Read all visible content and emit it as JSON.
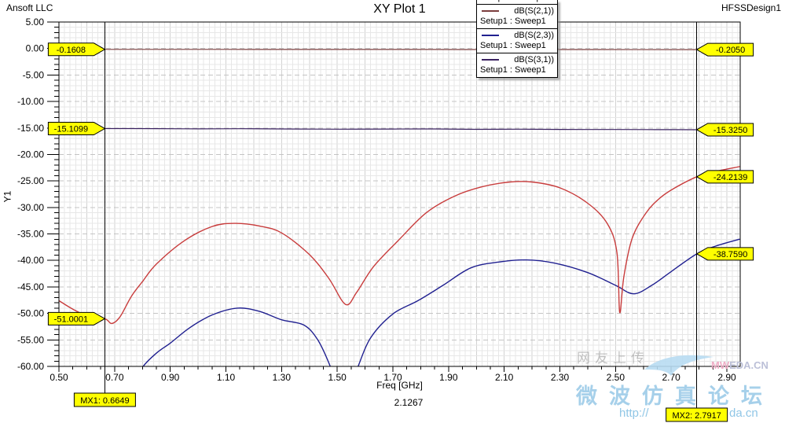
{
  "header": {
    "app_vendor": "Ansoft LLC",
    "title": "XY Plot 1",
    "design": "HFSSDesign1"
  },
  "axes": {
    "y_axis_label": "Y1",
    "x_axis_label": "Freq [GHz]",
    "x_axis_secondary_value": "2.1267",
    "x_ticks": [
      "0.50",
      "0.70",
      "0.90",
      "1.10",
      "1.30",
      "1.50",
      "1.70",
      "1.90",
      "2.10",
      "2.30",
      "2.50",
      "2.70",
      "2.90"
    ],
    "y_ticks": [
      "5.00",
      "0.00",
      "-5.00",
      "-10.00",
      "-15.00",
      "-20.00",
      "-25.00",
      "-30.00",
      "-35.00",
      "-40.00",
      "-45.00",
      "-50.00",
      "-55.00",
      "-60.00"
    ]
  },
  "legend": {
    "entries": [
      {
        "partial": true,
        "label": "",
        "sublabel": "Setup1 : Sweep1",
        "color": ""
      },
      {
        "partial": false,
        "label": "dB(S(2,1))",
        "sublabel": "Setup1 : Sweep1",
        "color": "#7b3e3e"
      },
      {
        "partial": false,
        "label": "dB(S(2,3))",
        "sublabel": "Setup1 : Sweep1",
        "color": "#202090"
      },
      {
        "partial": false,
        "label": "dB(S(3,1))",
        "sublabel": "Setup1 : Sweep1",
        "color": "#3a2160"
      }
    ]
  },
  "chart_data": {
    "type": "line",
    "title": "XY Plot 1",
    "xlabel": "Freq [GHz]",
    "ylabel": "Y1",
    "x_range": [
      0.5,
      2.9
    ],
    "y_range": [
      -60,
      5
    ],
    "x_tick_step": 0.2,
    "y_tick_step": 5,
    "grid": true,
    "series": [
      {
        "id": "s21",
        "name": "dB(S(2,1))",
        "color": "#7b3e3e",
        "width": 1.2,
        "points": [
          [
            0.5,
            -0.15
          ],
          [
            0.665,
            -0.161
          ],
          [
            0.9,
            -0.166
          ],
          [
            1.2,
            -0.172
          ],
          [
            1.5,
            -0.179
          ],
          [
            1.8,
            -0.186
          ],
          [
            2.1,
            -0.193
          ],
          [
            2.4,
            -0.199
          ],
          [
            2.792,
            -0.205
          ],
          [
            2.945,
            -0.208
          ]
        ]
      },
      {
        "id": "s31",
        "name": "dB(S(3,1))",
        "color": "#3a2160",
        "width": 1.2,
        "points": [
          [
            0.5,
            -15.09
          ],
          [
            0.665,
            -15.11
          ],
          [
            0.85,
            -15.12
          ],
          [
            1.0,
            -15.17
          ],
          [
            1.15,
            -15.14
          ],
          [
            1.3,
            -15.19
          ],
          [
            1.5,
            -15.22
          ],
          [
            1.7,
            -15.2
          ],
          [
            1.85,
            -15.18
          ],
          [
            2.0,
            -15.25
          ],
          [
            2.15,
            -15.23
          ],
          [
            2.3,
            -15.27
          ],
          [
            2.5,
            -15.29
          ],
          [
            2.65,
            -15.31
          ],
          [
            2.792,
            -15.325
          ],
          [
            2.945,
            -15.34
          ]
        ]
      },
      {
        "id": "s23",
        "name": "dB(S(2,3))",
        "color": "#202090",
        "width": 1.4,
        "points": [
          [
            0.78,
            -63.0
          ],
          [
            0.8,
            -60.2
          ],
          [
            0.85,
            -57.5
          ],
          [
            0.9,
            -55.6
          ],
          [
            0.97,
            -52.7
          ],
          [
            1.05,
            -50.3
          ],
          [
            1.14,
            -49.0
          ],
          [
            1.22,
            -49.6
          ],
          [
            1.3,
            -51.2
          ],
          [
            1.38,
            -52.2
          ],
          [
            1.43,
            -55.0
          ],
          [
            1.475,
            -60.0
          ],
          [
            1.5,
            -64.0
          ],
          [
            1.545,
            -64.0
          ],
          [
            1.575,
            -60.0
          ],
          [
            1.62,
            -54.6
          ],
          [
            1.7,
            -50.1
          ],
          [
            1.79,
            -47.6
          ],
          [
            1.88,
            -44.7
          ],
          [
            1.98,
            -41.4
          ],
          [
            2.08,
            -40.3
          ],
          [
            2.18,
            -39.9
          ],
          [
            2.28,
            -40.5
          ],
          [
            2.4,
            -42.3
          ],
          [
            2.5,
            -44.7
          ],
          [
            2.565,
            -46.3
          ],
          [
            2.63,
            -44.7
          ],
          [
            2.7,
            -42.1
          ],
          [
            2.792,
            -38.76
          ],
          [
            2.86,
            -37.3
          ],
          [
            2.945,
            -36.0
          ]
        ]
      },
      {
        "id": "red_unlabeled",
        "name": "",
        "color": "#c83c3c",
        "width": 1.4,
        "points": [
          [
            0.5,
            -47.6
          ],
          [
            0.55,
            -49.2
          ],
          [
            0.6,
            -50.4
          ],
          [
            0.665,
            -51.0
          ],
          [
            0.69,
            -51.9
          ],
          [
            0.72,
            -50.6
          ],
          [
            0.76,
            -46.8
          ],
          [
            0.8,
            -44.0
          ],
          [
            0.85,
            -40.7
          ],
          [
            0.95,
            -36.3
          ],
          [
            1.05,
            -33.6
          ],
          [
            1.13,
            -33.0
          ],
          [
            1.22,
            -33.5
          ],
          [
            1.3,
            -34.8
          ],
          [
            1.4,
            -38.9
          ],
          [
            1.47,
            -43.4
          ],
          [
            1.53,
            -48.3
          ],
          [
            1.57,
            -46.0
          ],
          [
            1.63,
            -41.2
          ],
          [
            1.72,
            -36.2
          ],
          [
            1.82,
            -31.0
          ],
          [
            1.92,
            -27.9
          ],
          [
            2.02,
            -26.1
          ],
          [
            2.12,
            -25.2
          ],
          [
            2.2,
            -25.2
          ],
          [
            2.3,
            -26.3
          ],
          [
            2.4,
            -29.2
          ],
          [
            2.47,
            -33.0
          ],
          [
            2.505,
            -38.5
          ],
          [
            2.515,
            -49.8
          ],
          [
            2.53,
            -43.0
          ],
          [
            2.56,
            -35.8
          ],
          [
            2.61,
            -31.0
          ],
          [
            2.66,
            -28.2
          ],
          [
            2.71,
            -26.4
          ],
          [
            2.792,
            -24.21
          ],
          [
            2.86,
            -23.2
          ],
          [
            2.945,
            -22.3
          ]
        ]
      }
    ]
  },
  "markers": [
    {
      "id": "MX1",
      "label": "MX1: 0.6649",
      "freq": 0.6649,
      "side": "left",
      "values": [
        {
          "text": "-0.1608",
          "value": -0.1608
        },
        {
          "text": "-15.1099",
          "value": -15.1099
        },
        {
          "text": "-51.0001",
          "value": -51.0001
        }
      ]
    },
    {
      "id": "MX2",
      "label": "MX2: 2.7917",
      "freq": 2.7917,
      "side": "right",
      "values": [
        {
          "text": "-0.2050",
          "value": -0.205
        },
        {
          "text": "-15.3250",
          "value": -15.325
        },
        {
          "text": "-24.2139",
          "value": -24.2139
        },
        {
          "text": "-38.7590",
          "value": -38.759
        }
      ]
    }
  ],
  "badge": {
    "bg": "#ffff00",
    "border": "#000000"
  },
  "watermark": {
    "upload_text": "网友上传",
    "logo_prefix": "MW",
    "logo_suffix": "EDA.CN",
    "site_name": "微波仿真论坛",
    "url_left": "http://",
    "url_right": "da.cn"
  }
}
